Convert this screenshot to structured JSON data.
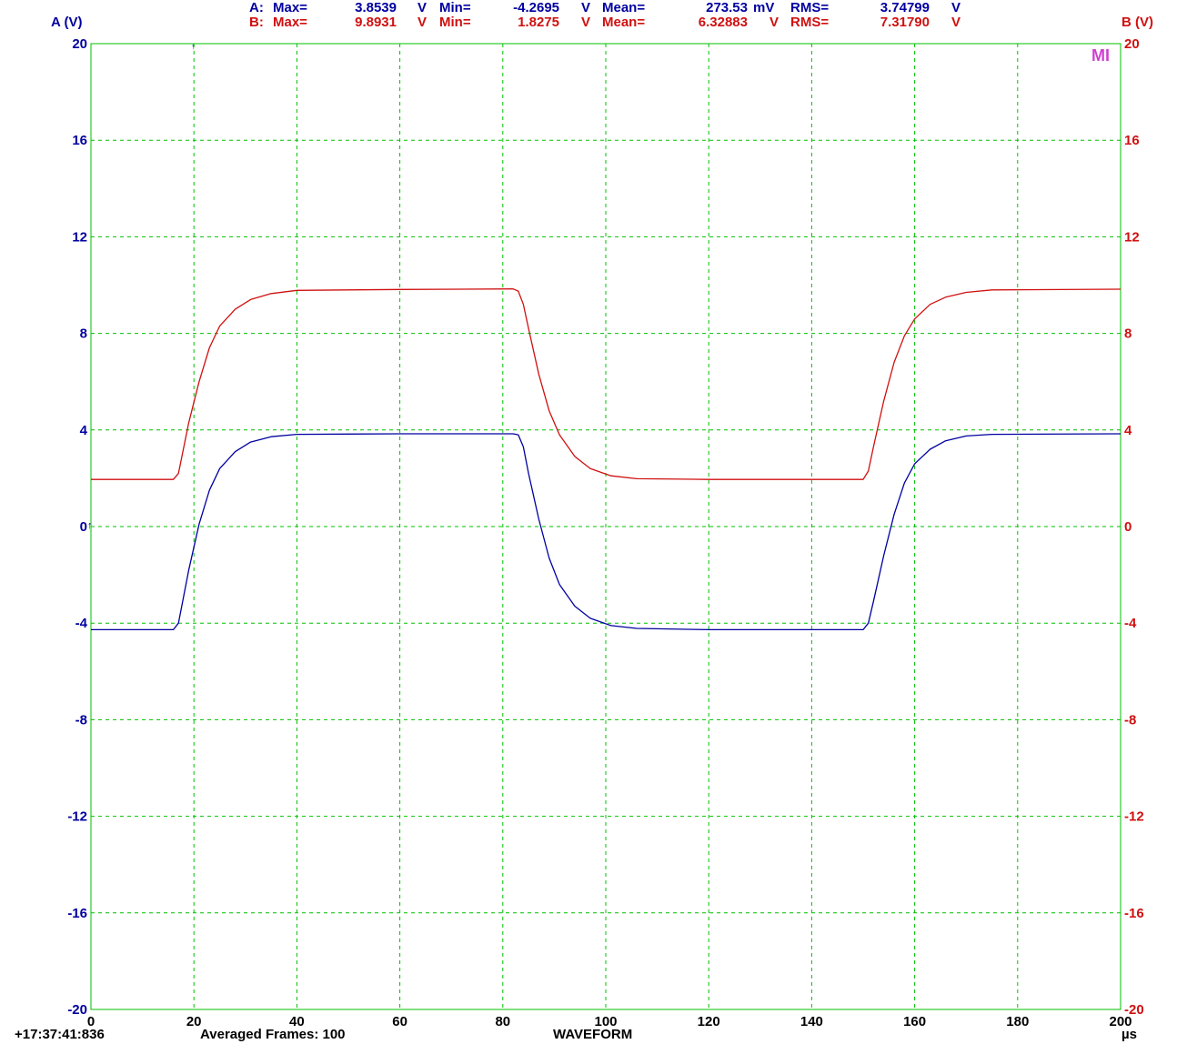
{
  "stats": {
    "a": {
      "label": "A:",
      "max_label": "Max=",
      "max": "3.8539",
      "max_unit": "V",
      "min_label": "Min=",
      "min": "-4.2695",
      "min_unit": "V",
      "mean_label": "Mean=",
      "mean": "273.53",
      "mean_unit": "mV",
      "rms_label": "RMS=",
      "rms": "3.74799",
      "rms_unit": "V"
    },
    "b": {
      "label": "B:",
      "max_label": "Max=",
      "max": "9.8931",
      "max_unit": "V",
      "min_label": "Min=",
      "min": "1.8275",
      "min_unit": "V",
      "mean_label": "Mean=",
      "mean": "6.32883",
      "mean_unit": "V",
      "rms_label": "RMS=",
      "rms": "7.31790",
      "rms_unit": "V"
    }
  },
  "footer": {
    "timestamp": "+17:37:41:836",
    "averaged": "Averaged Frames: 100",
    "mode": "WAVEFORM",
    "x_unit": "µs"
  },
  "marker_text": "MI",
  "colors": {
    "channel_a": "#0000a0",
    "channel_b": "#d01010",
    "grid": "#00c000",
    "marker": "#d040d0"
  },
  "chart_data": {
    "type": "line",
    "x_label": "µs",
    "y_label_left": "A (V)",
    "y_label_right": "B (V)",
    "xlim": [
      0,
      200
    ],
    "ylim_left": [
      -20,
      20
    ],
    "ylim_right": [
      -20,
      20
    ],
    "x_ticks": [
      "0",
      "20",
      "40",
      "60",
      "80",
      "100",
      "120",
      "140",
      "160",
      "180",
      "200"
    ],
    "y_ticks": [
      "20",
      "16",
      "12",
      "8",
      "4",
      "0",
      "-4",
      "-8",
      "-12",
      "-16",
      "-20"
    ],
    "grid": true,
    "series": [
      {
        "name": "A",
        "axis": "left",
        "x": [
          0,
          16,
          17,
          19,
          21,
          23,
          25,
          28,
          31,
          35,
          40,
          60,
          82,
          83,
          84,
          85,
          87,
          89,
          91,
          94,
          97,
          101,
          106,
          120,
          150,
          151,
          152,
          154,
          156,
          158,
          160,
          163,
          166,
          170,
          175,
          200
        ],
        "y": [
          -4.27,
          -4.27,
          -4.0,
          -1.8,
          0.1,
          1.5,
          2.4,
          3.1,
          3.5,
          3.72,
          3.82,
          3.84,
          3.84,
          3.8,
          3.3,
          2.2,
          0.3,
          -1.3,
          -2.4,
          -3.3,
          -3.8,
          -4.1,
          -4.22,
          -4.27,
          -4.27,
          -4.0,
          -3.1,
          -1.2,
          0.5,
          1.8,
          2.6,
          3.2,
          3.55,
          3.75,
          3.82,
          3.84
        ]
      },
      {
        "name": "B",
        "axis": "right",
        "x": [
          0,
          16,
          17,
          19,
          21,
          23,
          25,
          28,
          31,
          35,
          40,
          60,
          82,
          83,
          84,
          85,
          87,
          89,
          91,
          94,
          97,
          101,
          106,
          120,
          150,
          151,
          152,
          154,
          156,
          158,
          160,
          163,
          166,
          170,
          175,
          200
        ],
        "y": [
          1.95,
          1.95,
          2.2,
          4.3,
          6.0,
          7.4,
          8.3,
          9.0,
          9.4,
          9.65,
          9.78,
          9.82,
          9.84,
          9.75,
          9.2,
          8.2,
          6.3,
          4.8,
          3.8,
          2.9,
          2.4,
          2.1,
          1.98,
          1.95,
          1.95,
          2.3,
          3.3,
          5.2,
          6.8,
          7.9,
          8.6,
          9.2,
          9.5,
          9.7,
          9.8,
          9.83
        ]
      }
    ]
  }
}
